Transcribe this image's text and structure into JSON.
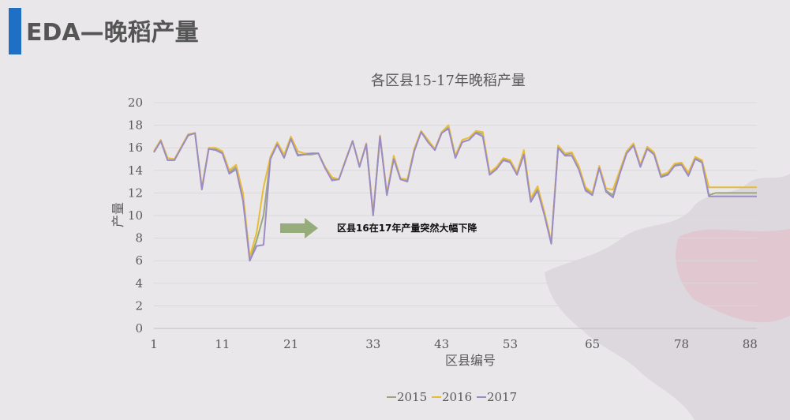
{
  "slide": {
    "title": "EDA—晚稻产量"
  },
  "chart_data": {
    "type": "line",
    "title": "各区县15-17年晚稻产量",
    "xlabel": "区县编号",
    "ylabel": "产量",
    "ylim": [
      0,
      20
    ],
    "yticks": [
      0,
      2,
      4,
      6,
      8,
      10,
      12,
      14,
      16,
      18,
      20
    ],
    "xlim": [
      1,
      89
    ],
    "xticks": [
      1,
      11,
      21,
      33,
      43,
      53,
      65,
      78,
      88
    ],
    "grid": true,
    "legend": "bottom",
    "x": [
      1,
      2,
      3,
      4,
      5,
      6,
      7,
      8,
      9,
      10,
      11,
      12,
      13,
      14,
      15,
      16,
      17,
      18,
      19,
      20,
      21,
      22,
      23,
      24,
      25,
      26,
      27,
      28,
      29,
      30,
      31,
      32,
      33,
      34,
      35,
      36,
      37,
      38,
      39,
      40,
      41,
      42,
      43,
      44,
      45,
      46,
      47,
      48,
      49,
      50,
      51,
      52,
      53,
      54,
      55,
      56,
      57,
      58,
      59,
      60,
      61,
      62,
      63,
      64,
      65,
      66,
      67,
      68,
      69,
      70,
      71,
      72,
      73,
      74,
      75,
      76,
      77,
      78,
      79,
      80,
      81,
      82,
      83,
      84,
      85,
      86,
      87,
      88,
      89
    ],
    "series": [
      {
        "name": "2015",
        "color": "#9aa87a",
        "values": [
          15.6,
          16.6,
          14.9,
          14.9,
          16.0,
          17.1,
          17.3,
          12.4,
          15.9,
          15.9,
          15.6,
          13.8,
          14.3,
          11.5,
          6.0,
          7.8,
          10.0,
          15.0,
          16.4,
          15.2,
          16.8,
          15.4,
          15.4,
          15.4,
          15.5,
          14.2,
          13.2,
          13.2,
          14.9,
          16.6,
          14.4,
          16.3,
          10.1,
          17.0,
          11.9,
          15.1,
          13.2,
          13.1,
          15.8,
          17.4,
          16.6,
          15.8,
          17.3,
          17.8,
          15.2,
          16.5,
          16.7,
          17.4,
          17.2,
          13.7,
          14.2,
          15.0,
          14.8,
          13.7,
          15.6,
          11.3,
          12.3,
          10.1,
          7.6,
          16.1,
          15.4,
          15.5,
          14.2,
          12.3,
          11.9,
          14.3,
          12.2,
          11.8,
          13.8,
          15.6,
          16.3,
          14.4,
          16.0,
          15.5,
          13.5,
          13.7,
          14.5,
          14.6,
          13.6,
          15.1,
          14.8,
          11.8,
          12.0,
          12.0,
          12.0,
          12.0,
          12.0,
          12.0,
          12.0
        ]
      },
      {
        "name": "2016",
        "color": "#e8bc3a",
        "values": [
          15.7,
          16.7,
          15.1,
          15.0,
          16.1,
          17.2,
          17.3,
          12.5,
          16.0,
          16.0,
          15.7,
          14.0,
          14.5,
          12.0,
          6.3,
          8.5,
          12.5,
          15.2,
          16.5,
          15.4,
          17.0,
          15.7,
          15.5,
          15.5,
          15.5,
          14.3,
          13.4,
          13.2,
          15.0,
          16.6,
          14.4,
          16.4,
          10.2,
          17.1,
          12.0,
          15.3,
          13.3,
          13.2,
          15.9,
          17.5,
          16.7,
          15.9,
          17.4,
          18.0,
          15.3,
          16.7,
          16.9,
          17.5,
          17.4,
          13.8,
          14.3,
          15.1,
          14.9,
          13.8,
          15.8,
          11.5,
          12.6,
          10.3,
          7.7,
          16.2,
          15.5,
          15.6,
          14.4,
          12.5,
          12.0,
          14.4,
          12.4,
          12.3,
          14.0,
          15.7,
          16.4,
          14.5,
          16.1,
          15.6,
          13.6,
          13.8,
          14.6,
          14.7,
          13.8,
          15.2,
          14.9,
          12.5,
          12.5,
          12.5,
          12.5,
          12.5,
          12.5,
          12.5,
          12.5
        ]
      },
      {
        "name": "2017",
        "color": "#9b8cc4",
        "values": [
          15.6,
          16.6,
          14.9,
          14.9,
          16.0,
          17.1,
          17.3,
          12.3,
          15.9,
          15.8,
          15.5,
          13.7,
          14.1,
          11.3,
          6.0,
          7.3,
          7.4,
          15.0,
          16.3,
          15.1,
          16.8,
          15.3,
          15.4,
          15.5,
          15.5,
          14.2,
          13.1,
          13.2,
          14.9,
          16.6,
          14.3,
          16.3,
          10.0,
          17.0,
          11.8,
          15.0,
          13.2,
          13.0,
          15.7,
          17.4,
          16.5,
          15.8,
          17.3,
          17.7,
          15.1,
          16.5,
          16.7,
          17.3,
          17.0,
          13.6,
          14.1,
          14.9,
          14.7,
          13.6,
          15.4,
          11.2,
          12.2,
          10.0,
          7.5,
          16.0,
          15.3,
          15.3,
          14.1,
          12.2,
          11.8,
          14.2,
          12.1,
          11.6,
          13.7,
          15.5,
          16.2,
          14.3,
          15.9,
          15.4,
          13.4,
          13.6,
          14.4,
          14.5,
          13.5,
          15.0,
          14.7,
          11.7,
          11.7,
          11.7,
          11.7,
          11.7,
          11.7,
          11.7,
          11.7
        ]
      }
    ],
    "annotation": {
      "text": "区县16在17年产量突然大幅下降",
      "arrow_color": "#96ac7a"
    }
  }
}
